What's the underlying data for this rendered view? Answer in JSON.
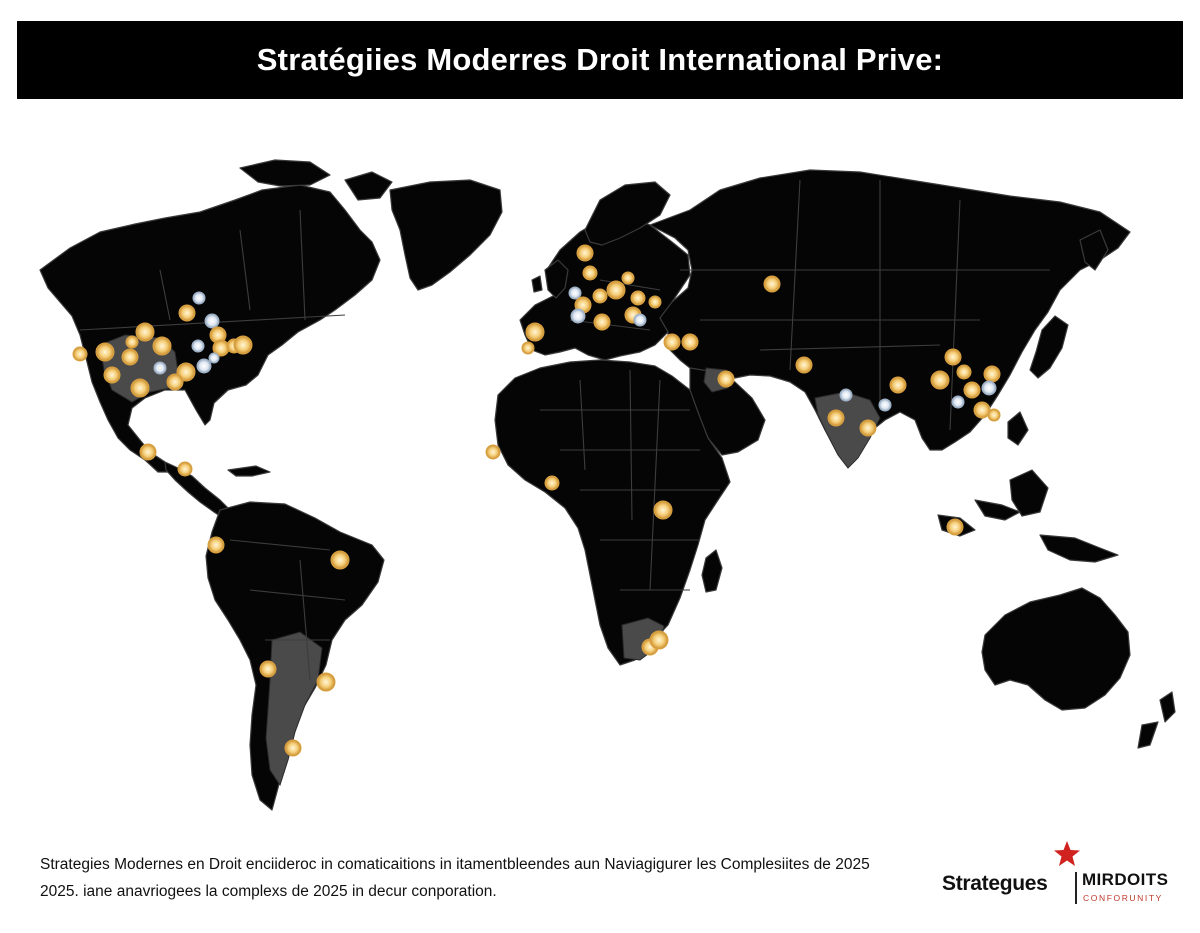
{
  "header": {
    "title": "Stratégiies Moderres Droit International Prive:"
  },
  "map": {
    "land_color": "#050505",
    "highlight_color": "#4a4a4a",
    "marker_color": "#f2c46a",
    "marker_white_color": "#e8eef5",
    "highlighted_regions": [
      "western-usa",
      "india",
      "argentina",
      "south-africa",
      "saudi-arabia"
    ],
    "marker_regions": [
      "north-america",
      "central-america",
      "south-america",
      "europe",
      "west-africa",
      "east-africa",
      "southern-africa",
      "middle-east",
      "india",
      "china",
      "southeast-asia",
      "russia"
    ]
  },
  "caption": {
    "line1": "Strategies Modernes en Droit enciideroc in comaticaitions in itamentbleendes aun Naviagigurer les Complesiites de 2025",
    "line2": "2025. iane anavriogees la complexs de 2025 in decur conporation."
  },
  "logo": {
    "icon": "star-icon",
    "wordmark": "Strategues",
    "brand": "MIRDOITS",
    "subtitle": "CONFORUNITY",
    "accent_color": "#d0231f"
  }
}
